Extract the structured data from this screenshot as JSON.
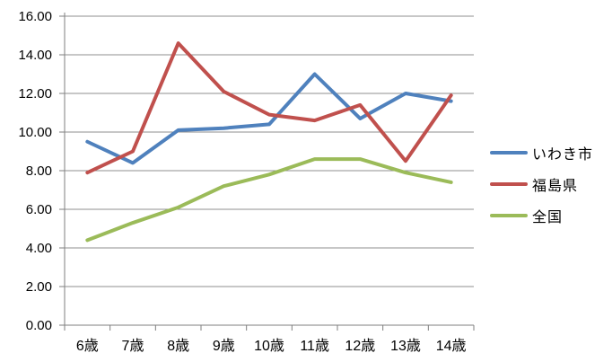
{
  "chart_data": {
    "type": "line",
    "title": "",
    "xlabel": "",
    "ylabel": "",
    "categories": [
      "6歳",
      "7歳",
      "8歳",
      "9歳",
      "10歳",
      "11歳",
      "12歳",
      "13歳",
      "14歳"
    ],
    "series": [
      {
        "name": "いわき市",
        "color": "#4F81BD",
        "values": [
          9.5,
          8.4,
          10.1,
          10.2,
          10.4,
          13.0,
          10.7,
          12.0,
          11.6
        ]
      },
      {
        "name": "福島県",
        "color": "#C0504D",
        "values": [
          7.9,
          9.0,
          14.6,
          12.1,
          10.9,
          10.6,
          11.4,
          8.5,
          11.9
        ]
      },
      {
        "name": "全国",
        "color": "#9BBB59",
        "values": [
          4.4,
          5.3,
          6.1,
          7.2,
          7.8,
          8.6,
          8.6,
          7.9,
          7.4
        ]
      }
    ],
    "ylim": [
      0,
      16
    ],
    "ytick_values": [
      0,
      2,
      4,
      6,
      8,
      10,
      12,
      14,
      16
    ],
    "ytick_labels": [
      "0.00",
      "2.00",
      "4.00",
      "6.00",
      "8.00",
      "10.00",
      "12.00",
      "14.00",
      "16.00"
    ],
    "grid": true,
    "legend_position": "right",
    "colors": {
      "gridline": "#8F8F8F",
      "axis": "#7F7F7F",
      "text": "#000000",
      "background": "#FFFFFF"
    }
  }
}
